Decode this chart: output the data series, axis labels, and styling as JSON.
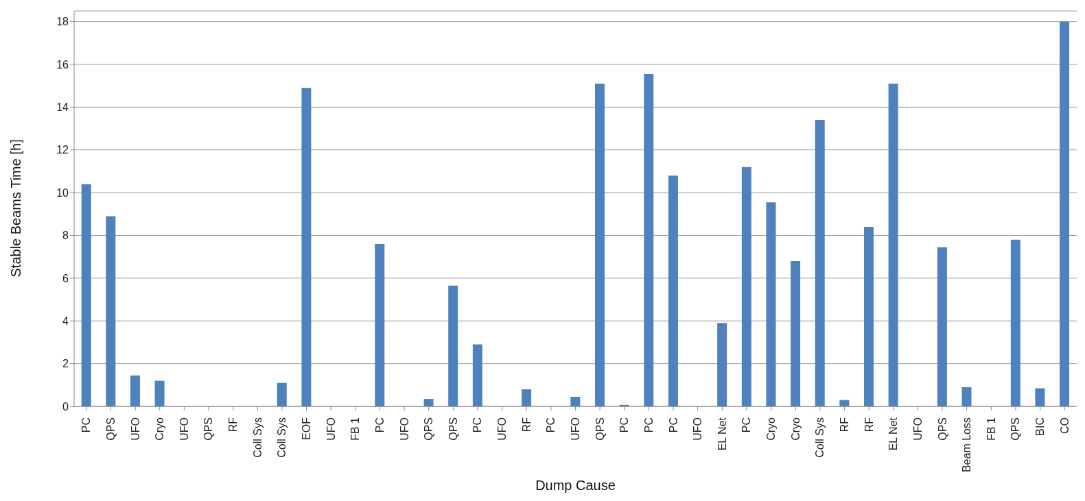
{
  "chart_data": {
    "type": "bar",
    "xlabel": "Dump Cause",
    "ylabel": "Stable Beams Time [h]",
    "categories": [
      "PC",
      "QPS",
      "UFO",
      "Cryo",
      "UFO",
      "QPS",
      "RF",
      "Coll Sys",
      "Coll Sys",
      "EOF",
      "UFO",
      "FB 1",
      "PC",
      "UFO",
      "QPS",
      "QPS",
      "PC",
      "UFO",
      "RF",
      "PC",
      "UFO",
      "QPS",
      "PC",
      "PC",
      "PC",
      "UFO",
      "EL Net",
      "PC",
      "Cryo",
      "Cryo",
      "Coll Sys",
      "RF",
      "RF",
      "EL Net",
      "UFO",
      "QPS",
      "Beam Loss",
      "FB 1",
      "QPS",
      "BIC",
      "CO"
    ],
    "values": [
      10.4,
      8.9,
      1.45,
      1.2,
      0,
      0,
      0,
      0,
      1.1,
      14.9,
      0,
      0,
      7.6,
      0,
      0.35,
      5.65,
      2.9,
      0,
      0.8,
      0,
      0.45,
      15.1,
      0.07,
      15.55,
      10.8,
      0,
      3.9,
      11.2,
      9.55,
      6.8,
      13.4,
      0.3,
      8.4,
      15.1,
      0,
      7.45,
      0.9,
      0,
      7.8,
      0.85,
      18
    ],
    "color": "#4f81bd",
    "ylim": [
      0,
      18.5
    ],
    "yticks": [
      0,
      2,
      4,
      6,
      8,
      10,
      12,
      14,
      16,
      18
    ],
    "grid": "y",
    "legend": false
  }
}
